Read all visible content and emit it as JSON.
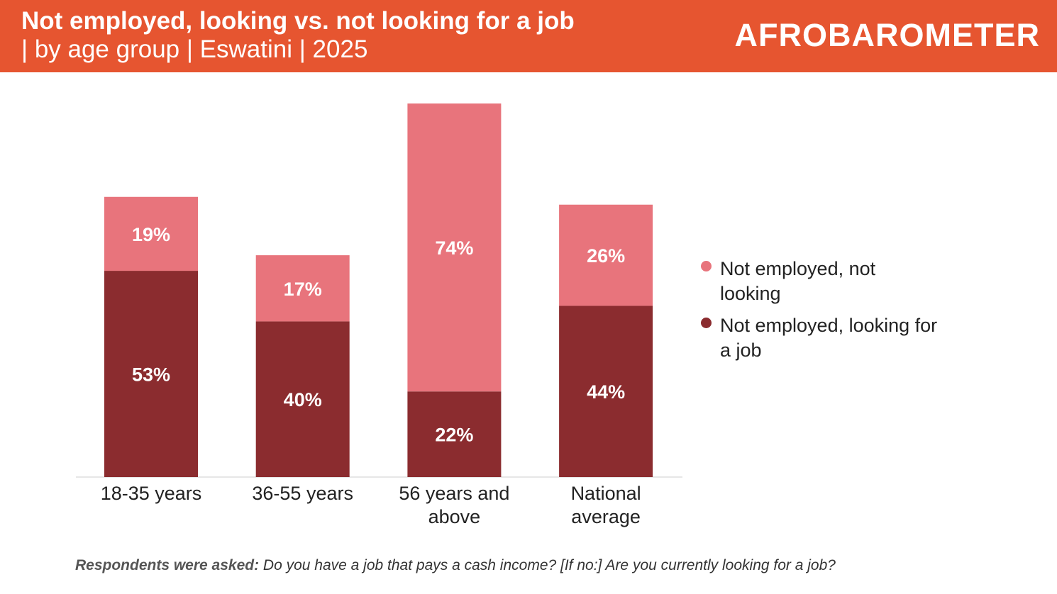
{
  "header": {
    "title": "Not employed, looking vs. not looking for a job",
    "subtitle": "| by age group | Eswatini | 2025",
    "logo": "AFROBAROMETER"
  },
  "chart_data": {
    "type": "bar",
    "stacked": true,
    "categories": [
      "18-35 years",
      "36-55 years",
      "56 years and above",
      "National average"
    ],
    "category_lines": [
      [
        "18-35 years"
      ],
      [
        "36-55 years"
      ],
      [
        "56 years and",
        "above"
      ],
      [
        "National",
        "average"
      ]
    ],
    "series": [
      {
        "name": "Not employed, looking for a job",
        "color": "#8B2C2F",
        "values": [
          53,
          40,
          22,
          44
        ]
      },
      {
        "name": "Not employed, not looking",
        "color": "#E8747C",
        "values": [
          19,
          17,
          74,
          26
        ]
      }
    ],
    "ylim": [
      0,
      96
    ],
    "legend_position": "right",
    "grid": false
  },
  "legend": [
    {
      "label": "Not employed, not looking",
      "color": "#E8747C"
    },
    {
      "label": "Not employed, looking for a job",
      "color": "#8B2C2F"
    }
  ],
  "footer": {
    "bold": "Respondents were asked:",
    "text": " Do you have a job that pays a cash income? [If no:] Are you currently looking for a job?"
  }
}
